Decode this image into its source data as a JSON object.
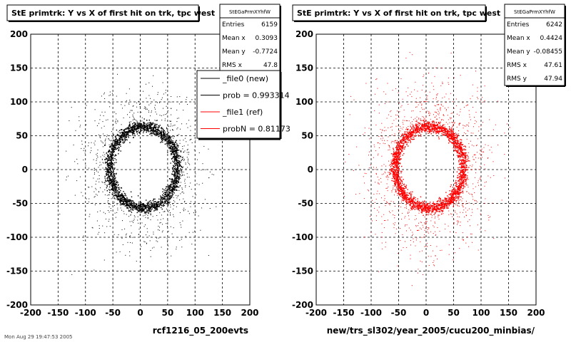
{
  "footer_text": "Mon Aug 29 19:47:53 2005",
  "chart_data": [
    {
      "type": "scatter",
      "title": "StE primtrk: Y vs X of first hit on trk, tpc west",
      "xlabel": "rcf1216_05_200evts",
      "ylabel": "",
      "xlim": [
        -200,
        200
      ],
      "ylim": [
        -200,
        200
      ],
      "xticks": [
        -200,
        -150,
        -100,
        -50,
        0,
        50,
        100,
        150,
        200
      ],
      "yticks": [
        -200,
        -150,
        -100,
        -50,
        0,
        50,
        100,
        150,
        200
      ],
      "grid": true,
      "marker_color": "#000000",
      "stats": {
        "name": "StEGaPrmXYhfW",
        "rows": [
          {
            "label": "Entries",
            "value": "6159"
          },
          {
            "label": "Mean x",
            "value": "0.3093"
          },
          {
            "label": "Mean y",
            "value": "-0.7724"
          },
          {
            "label": "RMS x",
            "value": "47.8"
          }
        ]
      },
      "legend": {
        "position": "top-right",
        "entries": [
          {
            "label": "_file0 (new)",
            "color": "#000000"
          },
          {
            "label": "prob = 0.993314",
            "color": "#000000"
          },
          {
            "label": "_file1 (ref)",
            "color": "#ff0000"
          },
          {
            "label": "probN = 0.81173",
            "color": "#ff0000"
          }
        ]
      },
      "distribution": {
        "ring_center": [
          5,
          4
        ],
        "ring_radius_x": 62,
        "ring_radius_y": 60,
        "ring_width": 7,
        "ring_count": 2400,
        "scatter_count": 700,
        "scatter_extent": 110
      }
    },
    {
      "type": "scatter",
      "title": "StE primtrk: Y vs X of first hit on trk, tpc west",
      "xlabel": "new/trs_sl302/year_2005/cucu200_minbias/",
      "ylabel": "",
      "xlim": [
        -200,
        200
      ],
      "ylim": [
        -200,
        200
      ],
      "xticks": [
        -200,
        -150,
        -100,
        -50,
        0,
        50,
        100,
        150,
        200
      ],
      "yticks": [
        -200,
        -150,
        -100,
        -50,
        0,
        50,
        100,
        150,
        200
      ],
      "grid": true,
      "marker_color": "#ff0000",
      "stats": {
        "name": "StEGaPrmXYhfW",
        "rows": [
          {
            "label": "Entries",
            "value": "6242"
          },
          {
            "label": "Mean x",
            "value": "0.4424"
          },
          {
            "label": "Mean y",
            "value": "-0.08455"
          },
          {
            "label": "RMS x",
            "value": "47.61"
          },
          {
            "label": "RMS y",
            "value": "47.94"
          }
        ]
      },
      "distribution": {
        "ring_center": [
          5,
          4
        ],
        "ring_radius_x": 62,
        "ring_radius_y": 60,
        "ring_width": 7,
        "ring_count": 2500,
        "scatter_count": 900,
        "scatter_extent": 115
      }
    }
  ]
}
